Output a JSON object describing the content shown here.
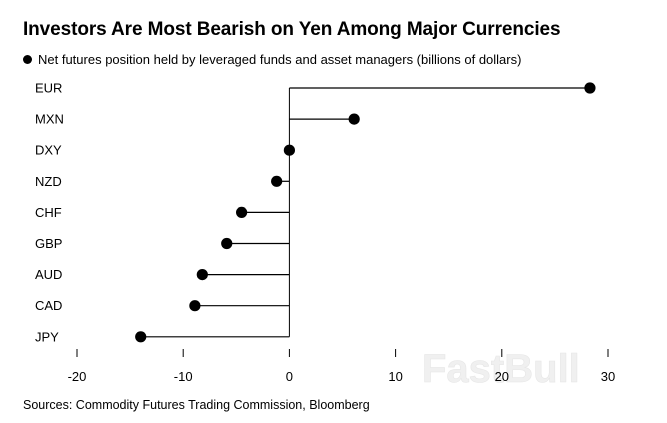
{
  "chart_data": {
    "type": "lollipop",
    "title": "Investors Are Most Bearish on Yen Among Major Currencies",
    "legend": "Net futures position held by leveraged funds and asset managers (billions of dollars)",
    "categories": [
      "EUR",
      "MXN",
      "DXY",
      "NZD",
      "CHF",
      "GBP",
      "AUD",
      "CAD",
      "JPY"
    ],
    "values": [
      28.3,
      6.1,
      0.0,
      -1.2,
      -4.5,
      -5.9,
      -8.2,
      -8.9,
      -14.0
    ],
    "xlim": [
      -20,
      30
    ],
    "xticks": [
      -20,
      -10,
      0,
      10,
      20,
      30
    ],
    "source": "Sources: Commodity Futures Trading Commission, Bloomberg",
    "watermark": "FastBull"
  }
}
